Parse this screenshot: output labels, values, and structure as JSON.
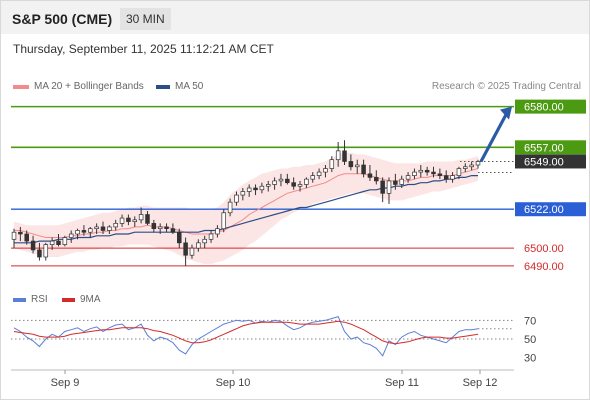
{
  "header": {
    "title": "S&P 500 (CME)",
    "timeframe": "30 MIN"
  },
  "date_line": "Thursday, September 11, 2025 11:12:21 AM CET",
  "legend": {
    "ma20": {
      "label": "MA 20 + Bollinger Bands",
      "color": "#f28b8b"
    },
    "ma50": {
      "label": "MA 50",
      "color": "#2b4e86"
    }
  },
  "copyright": "Research © 2025 Trading Central",
  "rsi_legend": {
    "rsi": {
      "label": "RSI",
      "color": "#5b7fd6"
    },
    "ma9": {
      "label": "9MA",
      "color": "#d42a2a"
    }
  },
  "chart_data": [
    {
      "type": "candlestick",
      "ylim": [
        6482,
        6586
      ],
      "x_ticks": [
        "Sep 9",
        "Sep 10",
        "Sep 11",
        "Sep 12"
      ],
      "levels": [
        {
          "value": 6580.0,
          "label": "6580.00",
          "kind": "resistance",
          "color": "#4c9a12"
        },
        {
          "value": 6557.0,
          "label": "6557.00",
          "kind": "resistance",
          "color": "#4c9a12"
        },
        {
          "value": 6549.0,
          "label": "6549.00",
          "kind": "last",
          "color": "#333333"
        },
        {
          "value": 6522.0,
          "label": "6522.00",
          "kind": "pivot",
          "color": "#2a5fd6"
        },
        {
          "value": 6500.0,
          "label": "6500.00",
          "kind": "support",
          "color": "#d42a2a"
        },
        {
          "value": 6490.0,
          "label": "6490.00",
          "kind": "support",
          "color": "#d42a2a"
        }
      ],
      "candles": [
        [
          6505,
          6511,
          6500,
          6509
        ],
        [
          6509,
          6512,
          6504,
          6508
        ],
        [
          6508,
          6510,
          6502,
          6504
        ],
        [
          6504,
          6507,
          6497,
          6499
        ],
        [
          6499,
          6503,
          6493,
          6495
        ],
        [
          6495,
          6503,
          6493,
          6502
        ],
        [
          6502,
          6506,
          6499,
          6504
        ],
        [
          6504,
          6508,
          6501,
          6502
        ],
        [
          6502,
          6507,
          6501,
          6506
        ],
        [
          6506,
          6510,
          6503,
          6508
        ],
        [
          6508,
          6511,
          6505,
          6510
        ],
        [
          6510,
          6513,
          6507,
          6509
        ],
        [
          6509,
          6512,
          6506,
          6511
        ],
        [
          6511,
          6514,
          6508,
          6512
        ],
        [
          6512,
          6515,
          6508,
          6510
        ],
        [
          6510,
          6513,
          6508,
          6512
        ],
        [
          6512,
          6516,
          6510,
          6514
        ],
        [
          6514,
          6519,
          6512,
          6517
        ],
        [
          6517,
          6519,
          6513,
          6515
        ],
        [
          6515,
          6518,
          6512,
          6516
        ],
        [
          6516,
          6523,
          6514,
          6519
        ],
        [
          6519,
          6521,
          6513,
          6514
        ],
        [
          6514,
          6516,
          6509,
          6511
        ],
        [
          6511,
          6514,
          6508,
          6512
        ],
        [
          6512,
          6514,
          6509,
          6511
        ],
        [
          6511,
          6514,
          6508,
          6509
        ],
        [
          6509,
          6511,
          6500,
          6503
        ],
        [
          6503,
          6506,
          6490,
          6496
        ],
        [
          6496,
          6502,
          6494,
          6500
        ],
        [
          6500,
          6505,
          6498,
          6503
        ],
        [
          6503,
          6507,
          6500,
          6505
        ],
        [
          6505,
          6510,
          6503,
          6508
        ],
        [
          6508,
          6513,
          6506,
          6511
        ],
        [
          6511,
          6522,
          6509,
          6520
        ],
        [
          6520,
          6528,
          6518,
          6526
        ],
        [
          6526,
          6532,
          6524,
          6530
        ],
        [
          6530,
          6534,
          6527,
          6532
        ],
        [
          6532,
          6536,
          6529,
          6534
        ],
        [
          6534,
          6536,
          6530,
          6533
        ],
        [
          6533,
          6537,
          6531,
          6535
        ],
        [
          6535,
          6538,
          6532,
          6536
        ],
        [
          6536,
          6540,
          6533,
          6538
        ],
        [
          6538,
          6542,
          6535,
          6539
        ],
        [
          6539,
          6542,
          6536,
          6537
        ],
        [
          6537,
          6540,
          6533,
          6535
        ],
        [
          6535,
          6538,
          6532,
          6536
        ],
        [
          6536,
          6540,
          6534,
          6539
        ],
        [
          6539,
          6543,
          6537,
          6541
        ],
        [
          6541,
          6545,
          6539,
          6543
        ],
        [
          6543,
          6547,
          6540,
          6545
        ],
        [
          6545,
          6552,
          6543,
          6550
        ],
        [
          6550,
          6560,
          6546,
          6555
        ],
        [
          6555,
          6561,
          6547,
          6549
        ],
        [
          6549,
          6553,
          6544,
          6546
        ],
        [
          6546,
          6550,
          6542,
          6547
        ],
        [
          6547,
          6550,
          6540,
          6542
        ],
        [
          6542,
          6547,
          6538,
          6540
        ],
        [
          6540,
          6544,
          6536,
          6538
        ],
        [
          6538,
          6540,
          6526,
          6531
        ],
        [
          6531,
          6540,
          6525,
          6538
        ],
        [
          6538,
          6542,
          6533,
          6536
        ],
        [
          6536,
          6541,
          6534,
          6539
        ],
        [
          6539,
          6543,
          6537,
          6541
        ],
        [
          6541,
          6545,
          6539,
          6543
        ],
        [
          6543,
          6547,
          6540,
          6544
        ],
        [
          6544,
          6546,
          6541,
          6543
        ],
        [
          6543,
          6546,
          6540,
          6542
        ],
        [
          6542,
          6545,
          6539,
          6541
        ],
        [
          6541,
          6544,
          6537,
          6539
        ],
        [
          6539,
          6543,
          6537,
          6541
        ],
        [
          6541,
          6546,
          6539,
          6545
        ],
        [
          6545,
          6548,
          6543,
          6546
        ],
        [
          6546,
          6549,
          6544,
          6547
        ],
        [
          6547,
          6550,
          6545,
          6549
        ]
      ],
      "ma20": [
        6510,
        6510,
        6509,
        6508,
        6507,
        6506,
        6506,
        6506,
        6506,
        6507,
        6507,
        6508,
        6508,
        6509,
        6509,
        6510,
        6510,
        6511,
        6511,
        6512,
        6512,
        6513,
        6512,
        6512,
        6512,
        6511,
        6510,
        6509,
        6508,
        6508,
        6508,
        6508,
        6509,
        6510,
        6512,
        6514,
        6516,
        6519,
        6521,
        6523,
        6525,
        6527,
        6529,
        6531,
        6532,
        6533,
        6534,
        6535,
        6536,
        6537,
        6539,
        6541,
        6542,
        6542,
        6542,
        6542,
        6541,
        6540,
        6539,
        6538,
        6538,
        6538,
        6538,
        6539,
        6540,
        6540,
        6541,
        6541,
        6541,
        6541,
        6542,
        6543,
        6544,
        6545
      ],
      "boll_upper": [
        6515,
        6514,
        6513,
        6513,
        6513,
        6513,
        6513,
        6513,
        6514,
        6515,
        6516,
        6517,
        6518,
        6519,
        6520,
        6520,
        6521,
        6522,
        6523,
        6523,
        6524,
        6524,
        6523,
        6523,
        6523,
        6523,
        6523,
        6523,
        6522,
        6522,
        6522,
        6522,
        6523,
        6526,
        6530,
        6533,
        6536,
        6538,
        6540,
        6542,
        6543,
        6544,
        6545,
        6545,
        6546,
        6546,
        6547,
        6547,
        6548,
        6549,
        6551,
        6553,
        6554,
        6554,
        6553,
        6553,
        6552,
        6551,
        6550,
        6549,
        6548,
        6548,
        6548,
        6548,
        6548,
        6549,
        6549,
        6549,
        6549,
        6549,
        6550,
        6550,
        6551,
        6552
      ],
      "boll_lower": [
        6500,
        6499,
        6498,
        6497,
        6496,
        6495,
        6495,
        6495,
        6496,
        6497,
        6498,
        6498,
        6499,
        6499,
        6500,
        6500,
        6501,
        6501,
        6502,
        6502,
        6502,
        6502,
        6501,
        6500,
        6499,
        6498,
        6496,
        6494,
        6493,
        6492,
        6491,
        6491,
        6492,
        6493,
        6495,
        6497,
        6499,
        6502,
        6504,
        6507,
        6510,
        6513,
        6516,
        6518,
        6520,
        6522,
        6523,
        6525,
        6526,
        6527,
        6528,
        6529,
        6530,
        6531,
        6531,
        6531,
        6530,
        6529,
        6528,
        6527,
        6527,
        6527,
        6528,
        6529,
        6530,
        6531,
        6532,
        6532,
        6533,
        6534,
        6535,
        6536,
        6537,
        6538
      ],
      "ma50": [
        6503,
        6503,
        6503,
        6503,
        6504,
        6504,
        6504,
        6505,
        6505,
        6505,
        6506,
        6506,
        6506,
        6507,
        6507,
        6507,
        6508,
        6508,
        6508,
        6509,
        6509,
        6509,
        6509,
        6509,
        6509,
        6509,
        6509,
        6509,
        6509,
        6509,
        6510,
        6510,
        6510,
        6511,
        6512,
        6513,
        6514,
        6515,
        6516,
        6517,
        6518,
        6519,
        6520,
        6521,
        6522,
        6523,
        6523,
        6524,
        6525,
        6526,
        6527,
        6528,
        6529,
        6530,
        6531,
        6532,
        6533,
        6533,
        6534,
        6534,
        6535,
        6535,
        6536,
        6536,
        6537,
        6537,
        6538,
        6538,
        6539,
        6539,
        6540,
        6540,
        6541,
        6541
      ],
      "forecast": {
        "from": 6549,
        "to": 6580
      }
    },
    {
      "type": "line",
      "name": "RSI",
      "ylim": [
        20,
        80
      ],
      "y_ticks": [
        70,
        50,
        30
      ],
      "series": [
        {
          "name": "RSI",
          "color": "#5b7fd6",
          "values": [
            62,
            58,
            52,
            48,
            42,
            50,
            55,
            52,
            58,
            60,
            62,
            58,
            61,
            63,
            58,
            62,
            65,
            66,
            60,
            62,
            66,
            54,
            48,
            52,
            50,
            46,
            38,
            34,
            44,
            50,
            54,
            58,
            62,
            66,
            68,
            70,
            69,
            70,
            67,
            69,
            68,
            70,
            69,
            64,
            60,
            62,
            66,
            68,
            69,
            70,
            72,
            74,
            58,
            50,
            52,
            46,
            44,
            40,
            32,
            48,
            44,
            52,
            56,
            58,
            54,
            52,
            50,
            48,
            46,
            52,
            58,
            60,
            60,
            61
          ]
        },
        {
          "name": "9MA",
          "color": "#d42a2a",
          "values": [
            58,
            57,
            56,
            55,
            53,
            52,
            52,
            52,
            53,
            55,
            56,
            57,
            58,
            59,
            60,
            60,
            61,
            62,
            62,
            62,
            62,
            61,
            59,
            58,
            56,
            54,
            51,
            48,
            46,
            46,
            47,
            49,
            52,
            55,
            58,
            61,
            64,
            66,
            67,
            68,
            68,
            68,
            68,
            68,
            67,
            66,
            66,
            66,
            66,
            67,
            68,
            69,
            68,
            66,
            63,
            60,
            56,
            52,
            48,
            46,
            45,
            46,
            47,
            49,
            51,
            52,
            52,
            52,
            51,
            51,
            52,
            53,
            54,
            55
          ]
        }
      ]
    }
  ]
}
